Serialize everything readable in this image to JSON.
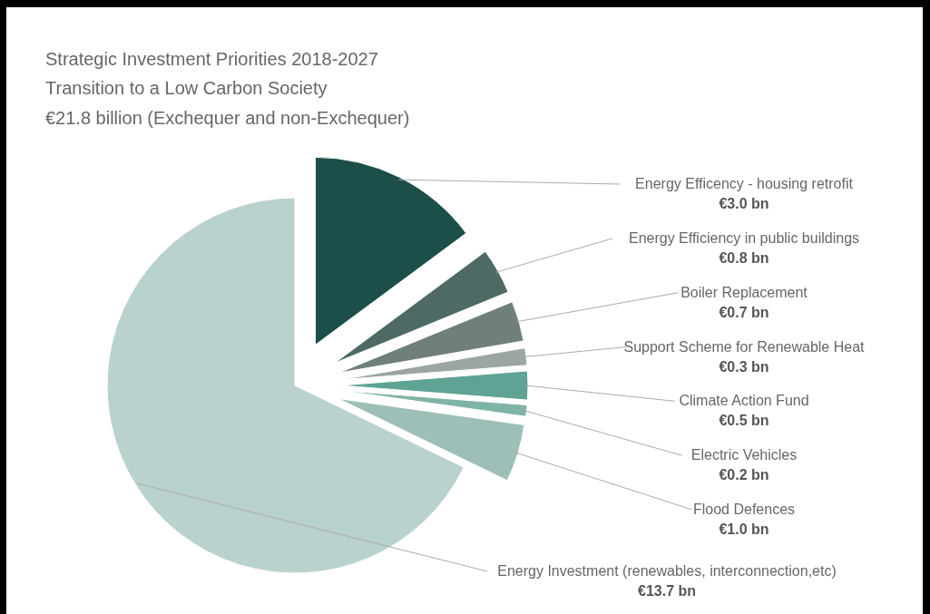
{
  "chart_data": {
    "type": "pie",
    "title": "Strategic Investment Priorities 2018-2027",
    "subtitle": "Transition to a Low Carbon Society",
    "annotations": [
      "€21.8 billion (Exchequer and non-Exchequer)"
    ],
    "categories": [
      "Energy Efficency - housing retrofit",
      "Energy Efficiency in public buildings",
      "Boiler Replacement",
      "Support Scheme for Renewable Heat",
      "Climate Action Fund",
      "Electric Vehicles",
      "Flood Defences",
      "Energy Investment (renewables, interconnection,etc)"
    ],
    "values": [
      3.0,
      0.8,
      0.7,
      0.3,
      0.5,
      0.2,
      1.0,
      13.7
    ],
    "value_labels": [
      "€3.0 bn",
      "€0.8 bn",
      "€0.7 bn",
      "€0.3 bn",
      "€0.5 bn",
      "€0.2 bn",
      "€1.0 bn",
      "€13.7 bn"
    ],
    "colors": [
      "#1d4f4a",
      "#4d6b64",
      "#6f807c",
      "#9ba6a3",
      "#5fa394",
      "#7fb3a8",
      "#9dbfb8",
      "#bad2ce"
    ]
  }
}
